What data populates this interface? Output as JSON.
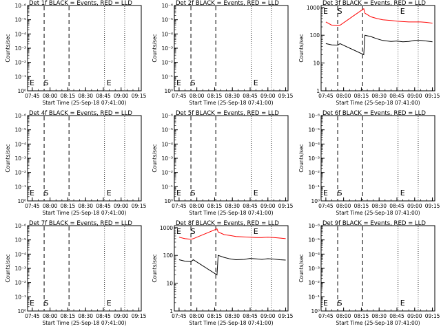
{
  "chart_data": [
    {
      "type": "line",
      "title": "Det 1f BLACK = Events, RED = LLD",
      "xlabel": "Start Time (25-Sep-18 07:41:00)",
      "ylabel": "Counts/sec",
      "x_ticks": [
        "07:45",
        "08:00",
        "08:15",
        "08:30",
        "08:45",
        "09:00",
        "09:15"
      ],
      "y_scale": "log",
      "y_ticks": [
        "10⁰",
        "10⁻¹",
        "10⁻²",
        "10⁻³",
        "10⁻⁴",
        "10⁻⁵",
        "10⁻⁶"
      ],
      "markers": [
        "E",
        "S",
        "E"
      ],
      "series": []
    },
    {
      "type": "line",
      "title": "Det 2f BLACK = Events, RED = LLD",
      "xlabel": "Start Time (25-Sep-18 07:41:00)",
      "ylabel": "Counts/sec",
      "x_ticks": [
        "07:45",
        "08:00",
        "08:15",
        "08:30",
        "08:45",
        "09:00",
        "09:15"
      ],
      "y_scale": "log",
      "y_ticks": [
        "10⁰",
        "10⁻¹",
        "10⁻²",
        "10⁻³",
        "10⁻⁴",
        "10⁻⁵",
        "10⁻⁶"
      ],
      "markers": [
        "E",
        "S",
        "E"
      ],
      "series": []
    },
    {
      "type": "line",
      "title": "Det 3f BLACK = Events, RED = LLD",
      "xlabel": "Start Time (25-Sep-18 07:41:00)",
      "ylabel": "Counts/sec",
      "x_ticks": [
        "07:45",
        "08:00",
        "08:15",
        "08:30",
        "08:45",
        "09:00",
        "09:15"
      ],
      "y_scale": "log",
      "y_ticks": [
        "1",
        "10",
        "100",
        "1000"
      ],
      "markers": [
        "E",
        "S",
        "E"
      ],
      "series": [
        {
          "color": "#ff0000",
          "x": [
            "07:45",
            "07:50",
            "07:55",
            "07:57",
            "08:17",
            "08:18",
            "08:23",
            "08:28",
            "08:33",
            "08:40",
            "08:45",
            "08:50",
            "08:55",
            "09:00",
            "09:05",
            "09:10",
            "09:15"
          ],
          "y": [
            300,
            230,
            220,
            230,
            900,
            620,
            460,
            400,
            360,
            340,
            320,
            310,
            300,
            300,
            300,
            290,
            270
          ]
        },
        {
          "color": "#000000",
          "x": [
            "07:45",
            "07:50",
            "07:55",
            "07:57",
            "08:17",
            "08:18",
            "08:23",
            "08:28",
            "08:33",
            "08:40",
            "08:45",
            "08:50",
            "08:55",
            "09:00",
            "09:05",
            "09:10",
            "09:15"
          ],
          "y": [
            50,
            45,
            44,
            50,
            20,
            100,
            90,
            75,
            65,
            60,
            62,
            58,
            60,
            65,
            65,
            62,
            58
          ]
        }
      ]
    },
    {
      "type": "line",
      "title": "Det 4f BLACK = Events, RED = LLD",
      "xlabel": "Start Time (25-Sep-18 07:41:00)",
      "ylabel": "Counts/sec",
      "x_ticks": [
        "07:45",
        "08:00",
        "08:15",
        "08:30",
        "08:45",
        "09:00",
        "09:15"
      ],
      "y_scale": "log",
      "y_ticks": [
        "10⁰",
        "10⁻¹",
        "10⁻²",
        "10⁻³",
        "10⁻⁴",
        "10⁻⁵",
        "10⁻⁶"
      ],
      "markers": [
        "E",
        "S",
        "E"
      ],
      "series": []
    },
    {
      "type": "line",
      "title": "Det 5f BLACK = Events, RED = LLD",
      "xlabel": "Start Time (25-Sep-18 07:41:00)",
      "ylabel": "Counts/sec",
      "x_ticks": [
        "07:45",
        "08:00",
        "08:15",
        "08:30",
        "08:45",
        "09:00",
        "09:15"
      ],
      "y_scale": "log",
      "y_ticks": [
        "10⁰",
        "10⁻¹",
        "10⁻²",
        "10⁻³",
        "10⁻⁴",
        "10⁻⁵",
        "10⁻⁶"
      ],
      "markers": [
        "E",
        "S",
        "E"
      ],
      "series": []
    },
    {
      "type": "line",
      "title": "Det 6f BLACK = Events, RED = LLD",
      "xlabel": "Start Time (25-Sep-18 07:41:00)",
      "ylabel": "Counts/sec",
      "x_ticks": [
        "07:45",
        "08:00",
        "08:15",
        "08:30",
        "08:45",
        "09:00",
        "09:15"
      ],
      "y_scale": "log",
      "y_ticks": [
        "10⁰",
        "10⁻¹",
        "10⁻²",
        "10⁻³",
        "10⁻⁴",
        "10⁻⁵",
        "10⁻⁶"
      ],
      "markers": [
        "E",
        "S",
        "E"
      ],
      "series": []
    },
    {
      "type": "line",
      "title": "Det 7f BLACK = Events, RED = LLD",
      "xlabel": "Start Time (25-Sep-18 07:41:00)",
      "ylabel": "Counts/sec",
      "x_ticks": [
        "07:45",
        "08:00",
        "08:15",
        "08:30",
        "08:45",
        "09:00",
        "09:15"
      ],
      "y_scale": "log",
      "y_ticks": [
        "10⁰",
        "10⁻¹",
        "10⁻²",
        "10⁻³",
        "10⁻⁴",
        "10⁻⁵",
        "10⁻⁶"
      ],
      "markers": [
        "E",
        "S",
        "E"
      ],
      "series": []
    },
    {
      "type": "line",
      "title": "Det 8f BLACK = Events, RED = LLD",
      "xlabel": "Start Time (25-Sep-18 07:41:00)",
      "ylabel": "Counts/sec",
      "x_ticks": [
        "07:45",
        "08:00",
        "08:15",
        "08:30",
        "08:45",
        "09:00",
        "09:15"
      ],
      "y_scale": "log",
      "y_ticks": [
        "1",
        "10",
        "100",
        "1000"
      ],
      "markers": [
        "E",
        "S",
        "E"
      ],
      "series": [
        {
          "color": "#ff0000",
          "x": [
            "07:45",
            "07:50",
            "07:55",
            "07:57",
            "08:17",
            "08:18",
            "08:23",
            "08:28",
            "08:33",
            "08:40",
            "08:45",
            "08:50",
            "08:55",
            "09:00",
            "09:05",
            "09:10",
            "09:15"
          ],
          "y": [
            450,
            400,
            380,
            400,
            900,
            700,
            560,
            520,
            480,
            460,
            450,
            440,
            440,
            450,
            440,
            420,
            400
          ]
        },
        {
          "color": "#000000",
          "x": [
            "07:45",
            "07:50",
            "07:55",
            "07:57",
            "08:17",
            "08:18",
            "08:23",
            "08:28",
            "08:33",
            "08:40",
            "08:45",
            "08:50",
            "08:55",
            "09:00",
            "09:05",
            "09:10",
            "09:15"
          ],
          "y": [
            70,
            62,
            60,
            70,
            20,
            100,
            85,
            75,
            70,
            72,
            78,
            75,
            72,
            76,
            74,
            70,
            68
          ]
        }
      ]
    },
    {
      "type": "line",
      "title": "Det 9f BLACK = Events, RED = LLD",
      "xlabel": "Start Time (25-Sep-18 07:41:00)",
      "ylabel": "Counts/sec",
      "x_ticks": [
        "07:45",
        "08:00",
        "08:15",
        "08:30",
        "08:45",
        "09:00",
        "09:15"
      ],
      "y_scale": "log",
      "y_ticks": [
        "10⁰",
        "10⁻¹",
        "10⁻²",
        "10⁻³",
        "10⁻⁴",
        "10⁻⁵",
        "10⁻⁶"
      ],
      "markers": [
        "E",
        "S",
        "E"
      ],
      "series": []
    }
  ]
}
